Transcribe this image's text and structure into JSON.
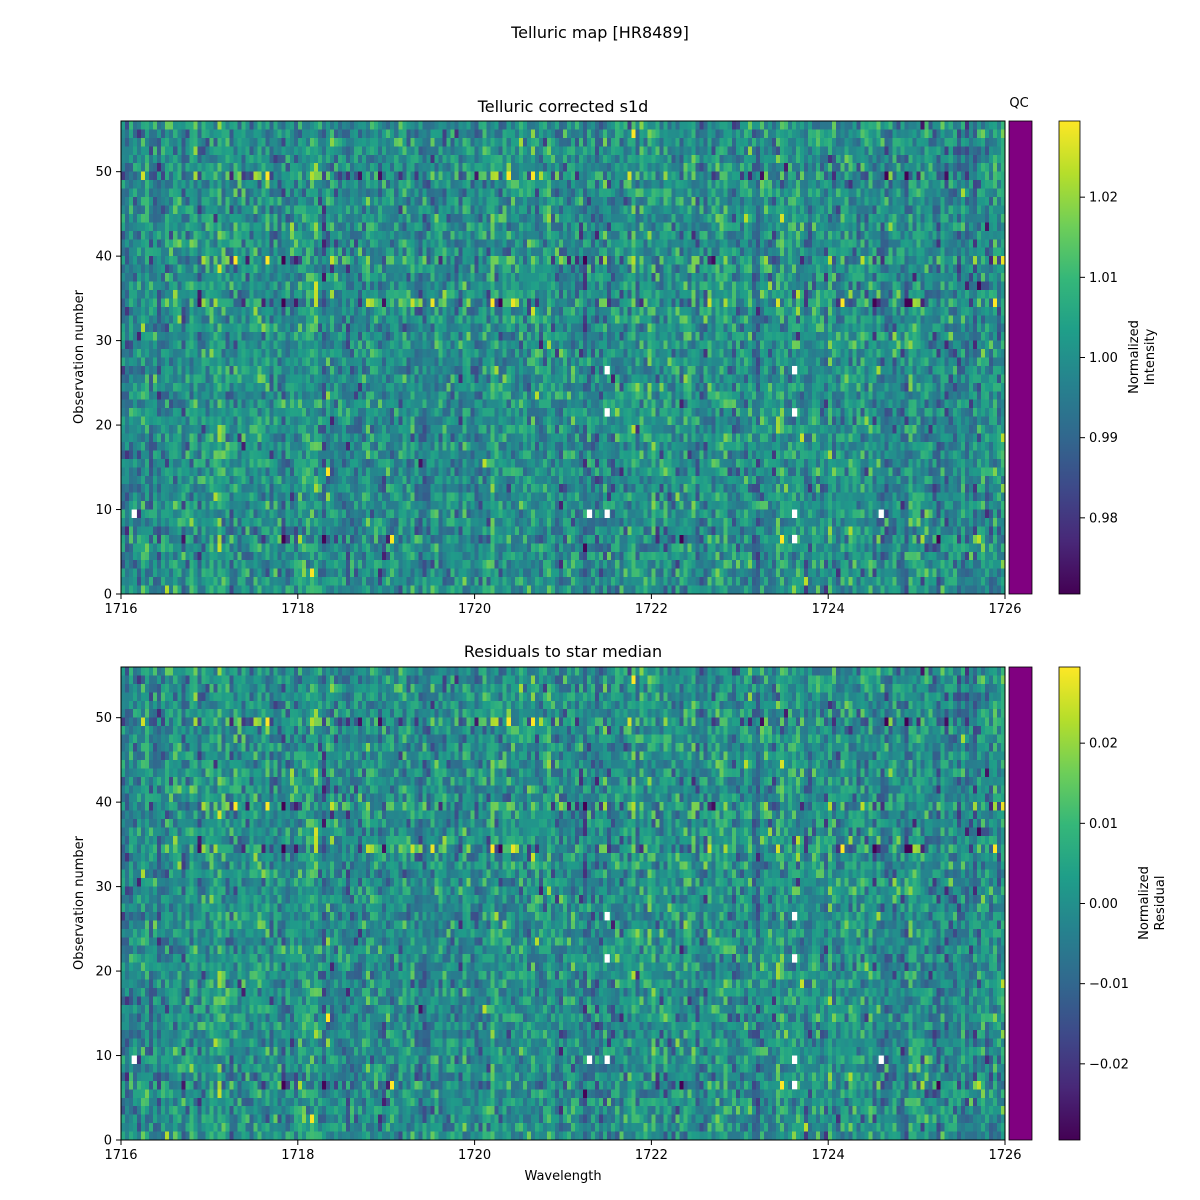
{
  "suptitle": "Telluric map [HR8489]",
  "qc_label": "QC",
  "qc_color": "#800080",
  "colormap": [
    "#440154",
    "#482878",
    "#3e4989",
    "#31688e",
    "#26828e",
    "#1f9e89",
    "#35b779",
    "#6ece58",
    "#b5de2b",
    "#fde725"
  ],
  "chart_data": [
    {
      "type": "heatmap",
      "title": "Telluric corrected s1d",
      "xlabel": "",
      "ylabel": "Observation number",
      "xlim": [
        1716,
        1726
      ],
      "ylim": [
        0,
        56
      ],
      "x_ticks": [
        1716,
        1718,
        1720,
        1722,
        1724,
        1726
      ],
      "x_tick_labels": [
        "1716",
        "1718",
        "1720",
        "1722",
        "1724",
        "1726"
      ],
      "y_ticks": [
        0,
        10,
        20,
        30,
        40,
        50
      ],
      "y_tick_labels": [
        "0",
        "10",
        "20",
        "30",
        "40",
        "50"
      ],
      "n_rows": 56,
      "n_cols": 220,
      "center_value": 1.0,
      "noise_sigma": 0.0085,
      "noisy_rows": [
        6,
        34,
        39,
        49
      ],
      "masked_cells": [
        {
          "x": 1716.15,
          "y": 9.5
        },
        {
          "x": 1721.3,
          "y": 9.5
        },
        {
          "x": 1721.5,
          "y": 9.5
        },
        {
          "x": 1723.62,
          "y": 9.5
        },
        {
          "x": 1724.6,
          "y": 9.5
        },
        {
          "x": 1723.62,
          "y": 6.5
        },
        {
          "x": 1721.5,
          "y": 21.5
        },
        {
          "x": 1723.62,
          "y": 21.5
        },
        {
          "x": 1721.5,
          "y": 26.5
        },
        {
          "x": 1723.62,
          "y": 26.5
        }
      ],
      "colorbar": {
        "label_lines": [
          "Normalized",
          "Intensity"
        ],
        "range": [
          0.9705,
          1.0295
        ],
        "ticks": [
          0.98,
          0.99,
          1.0,
          1.01,
          1.02
        ],
        "tick_labels": [
          "0.98",
          "0.99",
          "1.00",
          "1.01",
          "1.02"
        ]
      }
    },
    {
      "type": "heatmap",
      "title": "Residuals to star median",
      "xlabel": "Wavelength",
      "ylabel": "Observation number",
      "xlim": [
        1716,
        1726
      ],
      "ylim": [
        0,
        56
      ],
      "x_ticks": [
        1716,
        1718,
        1720,
        1722,
        1724,
        1726
      ],
      "x_tick_labels": [
        "1716",
        "1718",
        "1720",
        "1722",
        "1724",
        "1726"
      ],
      "y_ticks": [
        0,
        10,
        20,
        30,
        40,
        50
      ],
      "y_tick_labels": [
        "0",
        "10",
        "20",
        "30",
        "40",
        "50"
      ],
      "n_rows": 56,
      "n_cols": 220,
      "center_value": 0.0,
      "noise_sigma": 0.0085,
      "noisy_rows": [
        6,
        34,
        39,
        49
      ],
      "masked_cells": [
        {
          "x": 1716.15,
          "y": 9.5
        },
        {
          "x": 1721.3,
          "y": 9.5
        },
        {
          "x": 1721.5,
          "y": 9.5
        },
        {
          "x": 1723.62,
          "y": 9.5
        },
        {
          "x": 1724.6,
          "y": 9.5
        },
        {
          "x": 1723.62,
          "y": 6.5
        },
        {
          "x": 1721.5,
          "y": 21.5
        },
        {
          "x": 1723.62,
          "y": 21.5
        },
        {
          "x": 1721.5,
          "y": 26.5
        },
        {
          "x": 1723.62,
          "y": 26.5
        }
      ],
      "colorbar": {
        "label_lines": [
          "Normalized",
          "Residual"
        ],
        "range": [
          -0.0295,
          0.0295
        ],
        "ticks": [
          -0.02,
          -0.01,
          0.0,
          0.01,
          0.02
        ],
        "tick_labels": [
          "−0.02",
          "−0.01",
          "0.00",
          "0.01",
          "0.02"
        ]
      }
    }
  ]
}
